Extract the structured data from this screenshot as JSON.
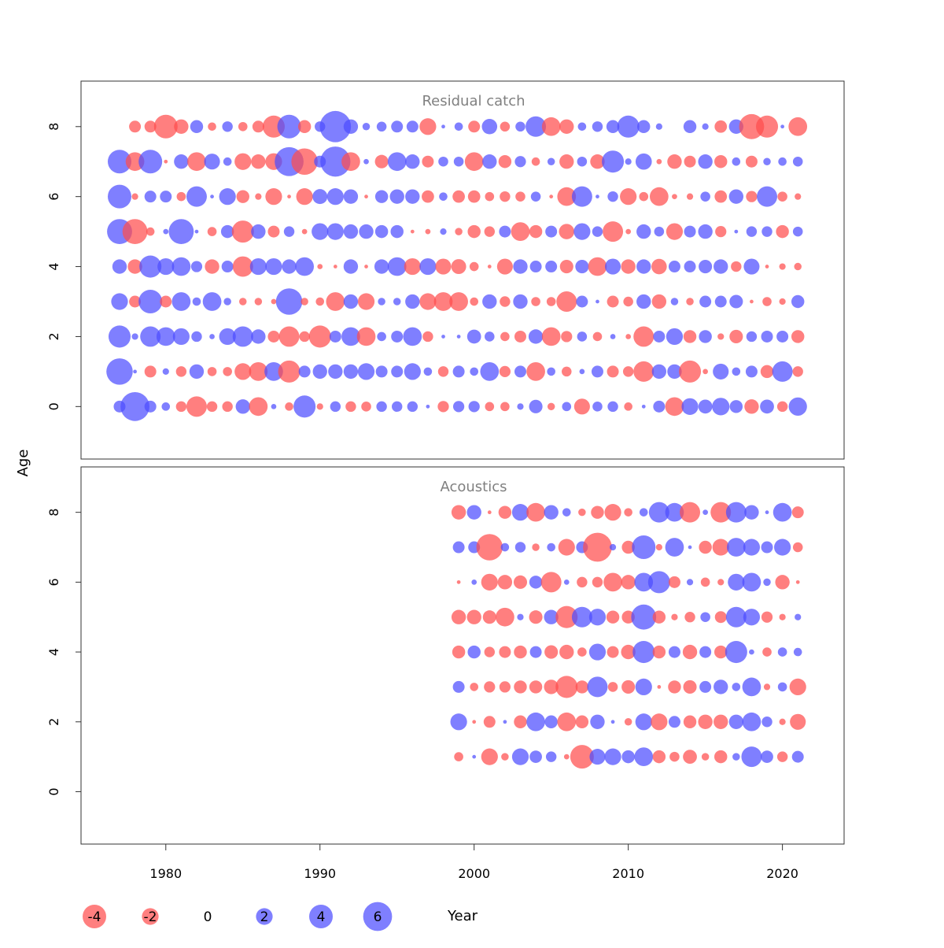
{
  "chart_data": {
    "type": "scatter",
    "subtype": "bubble",
    "xlabel": "Year",
    "ylabel": "Age",
    "xlim": [
      1974.5,
      2024
    ],
    "ylim": [
      -1.5,
      9.3
    ],
    "x_ticks": [
      1980,
      1990,
      2000,
      2010,
      2020
    ],
    "y_ticks": [
      0,
      2,
      4,
      6,
      8
    ],
    "grid": false,
    "colors": {
      "negative": "#ff4d4d",
      "positive": "#4d4dff"
    },
    "legend": {
      "position": "bottom",
      "entries": [
        {
          "label": "-4",
          "value": -4
        },
        {
          "label": "-2",
          "value": -2
        },
        {
          "label": "0",
          "value": 0
        },
        {
          "label": "2",
          "value": 2
        },
        {
          "label": "4",
          "value": 4
        },
        {
          "label": "6",
          "value": 6
        }
      ]
    },
    "panels": [
      {
        "title": "Residual catch",
        "years": [
          1977,
          1978,
          1979,
          1980,
          1981,
          1982,
          1983,
          1984,
          1985,
          1986,
          1987,
          1988,
          1989,
          1990,
          1991,
          1992,
          1993,
          1994,
          1995,
          1996,
          1997,
          1998,
          1999,
          2000,
          2001,
          2002,
          2003,
          2004,
          2005,
          2006,
          2007,
          2008,
          2009,
          2010,
          2011,
          2012,
          2013,
          2014,
          2015,
          2016,
          2017,
          2018,
          2019,
          2020,
          2021
        ],
        "residuals": {
          "0": [
            1.0,
            6.0,
            1.0,
            0.5,
            -0.8,
            -3.0,
            -0.8,
            -0.8,
            1.5,
            -2.5,
            0.2,
            -0.5,
            3.5,
            -0.3,
            0.8,
            -0.8,
            -0.7,
            0.8,
            0.8,
            0.8,
            0.1,
            -0.9,
            0.9,
            0.9,
            -0.6,
            -0.6,
            0.3,
            1.3,
            -0.4,
            0.6,
            -1.8,
            0.7,
            0.8,
            -0.5,
            0.1,
            1.0,
            -2.5,
            2.0,
            1.4,
            2.2,
            1.2,
            -1.5,
            1.4,
            -0.8,
            2.4
          ],
          "1": [
            5.0,
            0.1,
            -1.0,
            0.3,
            -0.8,
            1.5,
            -0.6,
            -0.6,
            -2.0,
            -2.5,
            2.5,
            -3.5,
            1.0,
            1.5,
            1.5,
            1.5,
            2.0,
            1.0,
            1.0,
            2.0,
            0.5,
            -0.8,
            1.0,
            0.5,
            2.5,
            -0.9,
            1.0,
            -2.5,
            0.5,
            -0.7,
            0.2,
            1.0,
            -1.0,
            -0.8,
            -3.0,
            1.5,
            1.5,
            -3.5,
            -0.2,
            1.8,
            0.5,
            1.0,
            -1.2,
            3.0,
            -0.8
          ],
          "2": [
            3.5,
            0.3,
            3.0,
            2.5,
            2.0,
            0.8,
            0.2,
            2.0,
            3.0,
            1.5,
            -1.0,
            -3.0,
            -0.8,
            -3.5,
            1.0,
            2.5,
            -2.5,
            0.6,
            1.0,
            2.5,
            -0.8,
            0.1,
            0.1,
            1.4,
            0.7,
            -0.6,
            -1.0,
            1.5,
            -2.5,
            -0.9,
            0.7,
            -0.6,
            0.2,
            -0.2,
            -3.0,
            1.0,
            2.0,
            -1.2,
            1.2,
            -0.3,
            -1.3,
            0.8,
            1.0,
            1.0,
            -1.2
          ],
          "3": [
            2.0,
            -1.0,
            4.0,
            -1.0,
            2.5,
            0.5,
            2.5,
            0.4,
            -0.4,
            -0.4,
            -0.2,
            5.0,
            -0.4,
            -0.5,
            -2.5,
            1.5,
            -2.0,
            0.4,
            0.4,
            1.5,
            -2.0,
            -2.5,
            -2.5,
            -0.5,
            1.5,
            -0.8,
            1.5,
            -0.6,
            -0.6,
            -3.0,
            1.0,
            0.1,
            -1.0,
            -0.7,
            1.5,
            -1.5,
            0.4,
            -0.4,
            1.0,
            1.0,
            1.3,
            -0.1,
            -0.6,
            -0.3,
            1.2
          ],
          "4": [
            1.5,
            -1.5,
            3.5,
            2.0,
            2.5,
            0.9,
            -1.5,
            1.0,
            -3.0,
            2.0,
            2.0,
            1.5,
            2.5,
            -0.2,
            -0.1,
            1.5,
            -0.1,
            1.5,
            2.5,
            -2.0,
            2.0,
            -1.8,
            -1.6,
            -0.6,
            -0.1,
            -1.8,
            1.5,
            1.0,
            1.0,
            -1.3,
            1.3,
            -2.5,
            1.8,
            -1.5,
            1.5,
            -1.7,
            1.0,
            1.0,
            1.3,
            1.5,
            -0.8,
            1.8,
            -0.1,
            -0.3,
            -0.4
          ],
          "5": [
            4.5,
            -4.5,
            -0.5,
            0.2,
            4.5,
            0.1,
            -0.6,
            1.2,
            -3.5,
            1.5,
            -1.0,
            0.8,
            -0.2,
            2.0,
            2.0,
            1.5,
            1.5,
            1.2,
            1.2,
            -0.1,
            -0.2,
            0.3,
            -0.4,
            -1.2,
            -0.8,
            1.0,
            -2.5,
            -1.2,
            1.0,
            -1.7,
            2.0,
            0.8,
            -3.0,
            -0.2,
            1.5,
            0.7,
            -2.0,
            1.0,
            1.5,
            -0.9,
            0.1,
            0.8,
            0.8,
            -1.2,
            0.7
          ],
          "6": [
            4.0,
            -0.3,
            1.0,
            1.0,
            -0.6,
            3.0,
            0.1,
            2.0,
            -1.2,
            -0.3,
            -2.0,
            -0.1,
            -2.0,
            1.6,
            2.0,
            1.5,
            -0.1,
            1.2,
            1.5,
            1.5,
            -1.1,
            0.5,
            -1.1,
            -1.1,
            -0.6,
            -0.8,
            -0.7,
            0.7,
            -0.1,
            -2.5,
            3.0,
            0.1,
            0.8,
            -2.0,
            -0.6,
            -2.5,
            -0.2,
            -0.3,
            0.7,
            -1.1,
            1.5,
            -0.9,
            3.0,
            -0.7,
            -0.3
          ],
          "7": [
            4.0,
            -2.5,
            4.0,
            -0.1,
            1.5,
            -2.5,
            1.8,
            0.5,
            -2.0,
            -1.5,
            -2.0,
            6.0,
            -5.0,
            1.0,
            6.5,
            -2.5,
            0.2,
            -1.3,
            2.5,
            1.5,
            -1.0,
            0.7,
            0.7,
            -2.5,
            1.5,
            -1.2,
            0.9,
            -0.5,
            0.4,
            -1.5,
            0.7,
            -1.5,
            3.5,
            0.3,
            1.9,
            -0.2,
            -1.5,
            -1.0,
            1.5,
            -1.2,
            0.5,
            -1.0,
            0.4,
            0.5,
            0.7
          ],
          "8": [
            0.0,
            -1.0,
            -1.0,
            -4.0,
            -1.5,
            1.2,
            -0.5,
            0.8,
            -0.6,
            -1.0,
            -3.5,
            4.0,
            -1.2,
            0.8,
            7.0,
            1.5,
            0.4,
            0.7,
            1.0,
            1.0,
            -2.0,
            0.1,
            0.5,
            -1.0,
            1.7,
            -0.7,
            0.7,
            3.0,
            -2.5,
            -1.5,
            0.5,
            0.8,
            1.2,
            3.5,
            1.2,
            0.3,
            0.0,
            1.2,
            0.3,
            -1.1,
            1.5,
            -4.5,
            -3.5,
            0.1,
            -2.5
          ]
        }
      },
      {
        "title": "Acoustics",
        "years": [
          1999,
          2000,
          2001,
          2002,
          2003,
          2004,
          2005,
          2006,
          2007,
          2008,
          2009,
          2010,
          2011,
          2012,
          2013,
          2014,
          2015,
          2016,
          2017,
          2018,
          2019,
          2020,
          2021
        ],
        "residuals": {
          "1": [
            -0.6,
            0.1,
            -2.0,
            -0.4,
            2.0,
            1.1,
            0.8,
            -0.2,
            -4.0,
            1.8,
            2.0,
            1.2,
            2.5,
            -1.2,
            -0.7,
            -1.4,
            -0.4,
            -1.2,
            0.4,
            3.0,
            1.1,
            -0.8,
            1.0
          ],
          "2": [
            2.0,
            -0.1,
            -1.0,
            0.1,
            -1.2,
            2.5,
            1.2,
            -2.5,
            -1.2,
            1.5,
            0.1,
            -0.4,
            2.0,
            -2.0,
            1.0,
            -1.2,
            -1.5,
            -1.5,
            1.5,
            2.5,
            0.8,
            -0.3,
            -1.8
          ],
          "3": [
            1.0,
            -0.5,
            -0.9,
            -0.9,
            -1.2,
            -1.2,
            -1.5,
            -3.5,
            -1.2,
            3.0,
            -0.7,
            -1.3,
            2.0,
            -0.1,
            -1.2,
            -1.3,
            1.0,
            1.5,
            0.5,
            2.5,
            -0.3,
            0.6,
            -2.0
          ],
          "4": [
            -1.2,
            1.2,
            -0.8,
            -1.0,
            -1.2,
            1.0,
            -1.3,
            -1.5,
            -0.6,
            2.0,
            -1.0,
            -1.5,
            3.5,
            -1.2,
            1.0,
            -1.5,
            1.0,
            -1.2,
            3.5,
            0.2,
            -0.6,
            0.6,
            0.5
          ],
          "5": [
            -1.5,
            -1.5,
            -1.3,
            -2.5,
            0.3,
            -1.3,
            1.5,
            -3.5,
            3.0,
            2.0,
            -1.2,
            -1.2,
            4.5,
            -1.2,
            -0.3,
            -0.8,
            0.7,
            -1.0,
            3.0,
            2.0,
            -0.9,
            -0.3,
            0.3
          ],
          "6": [
            -0.1,
            0.2,
            -2.0,
            -1.5,
            -1.3,
            1.2,
            -3.0,
            0.2,
            -0.8,
            -0.8,
            -2.5,
            -1.5,
            2.5,
            3.5,
            -1.0,
            0.3,
            -0.6,
            -0.3,
            2.0,
            2.5,
            0.4,
            -1.5,
            -0.1
          ],
          "7": [
            1.0,
            1.0,
            -5.0,
            0.5,
            0.8,
            -0.4,
            0.5,
            -2.0,
            1.0,
            -6.0,
            0.3,
            -1.2,
            4.0,
            -0.3,
            2.5,
            0.1,
            -1.2,
            -2.0,
            2.5,
            2.0,
            1.0,
            2.0,
            -0.7
          ],
          "8": [
            -1.5,
            1.5,
            -0.1,
            -1.2,
            2.0,
            -2.5,
            1.5,
            0.5,
            -0.4,
            -1.2,
            -2.0,
            -0.5,
            0.5,
            3.0,
            2.5,
            -3.0,
            0.2,
            -3.0,
            3.0,
            1.5,
            0.1,
            2.5,
            -1.0
          ]
        }
      }
    ]
  }
}
